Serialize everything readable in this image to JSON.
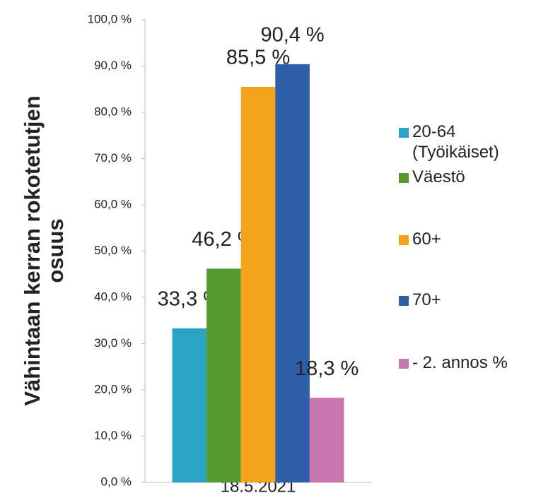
{
  "chart_data": {
    "type": "bar",
    "y_label": "Vähintaan kerran rokotetutjen osuus",
    "categories": [
      "18.5.2021"
    ],
    "series": [
      {
        "name": "20-64 (Työikäiset)",
        "color": "#2ba3c4",
        "values": [
          33.3
        ],
        "value_labels": [
          "33,3 %"
        ]
      },
      {
        "name": "Väestö",
        "color": "#559a2f",
        "values": [
          46.2
        ],
        "value_labels": [
          "46,2 %"
        ]
      },
      {
        "name": "60+",
        "color": "#f5a21b",
        "values": [
          85.5
        ],
        "value_labels": [
          "85,5 %"
        ]
      },
      {
        "name": "70+",
        "color": "#2f5ea8",
        "values": [
          90.4
        ],
        "value_labels": [
          "90,4 %"
        ]
      },
      {
        "name": "- 2. annos %",
        "color": "#c977ae",
        "values": [
          18.3
        ],
        "value_labels": [
          "18,3 %"
        ]
      }
    ],
    "ylim": [
      0,
      100
    ],
    "yticks": [
      {
        "value": 0,
        "label": "0,0 %"
      },
      {
        "value": 10,
        "label": "10,0 %"
      },
      {
        "value": 20,
        "label": "20,0 %"
      },
      {
        "value": 30,
        "label": "30,0 %"
      },
      {
        "value": 40,
        "label": "40,0 %"
      },
      {
        "value": 50,
        "label": "50,0 %"
      },
      {
        "value": 60,
        "label": "60,0 %"
      },
      {
        "value": 70,
        "label": "70,0 %"
      },
      {
        "value": 80,
        "label": "80,0 %"
      },
      {
        "value": 90,
        "label": "90,0 %"
      },
      {
        "value": 100,
        "label": "100,0 %"
      }
    ],
    "grid": false,
    "legend": "right"
  }
}
